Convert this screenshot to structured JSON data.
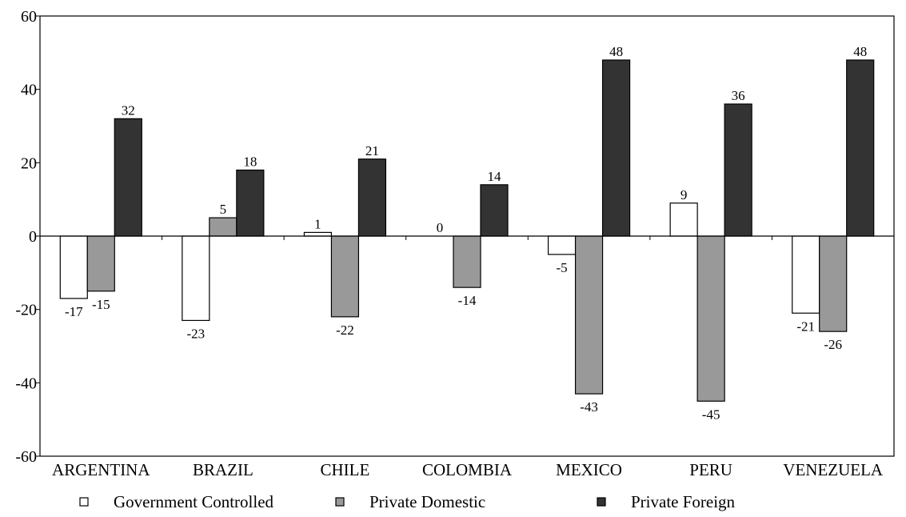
{
  "chart_data": {
    "type": "bar",
    "categories": [
      "ARGENTINA",
      "BRAZIL",
      "CHILE",
      "COLOMBIA",
      "MEXICO",
      "PERU",
      "VENEZUELA"
    ],
    "series": [
      {
        "name": "Government Controlled",
        "color": "#ffffff",
        "values": [
          -17,
          -23,
          1,
          0,
          -5,
          9,
          -21
        ],
        "labels": [
          "-17",
          "-23",
          "1",
          "0",
          "-5",
          "9",
          "-21"
        ]
      },
      {
        "name": "Private Domestic",
        "color": "#999999",
        "values": [
          -15,
          5,
          -22,
          -14,
          -43,
          -45,
          -26
        ],
        "labels": [
          "-15",
          "5",
          "-22",
          "-14",
          "-43",
          "-45",
          "-26"
        ]
      },
      {
        "name": "Private Foreign",
        "color": "#333333",
        "values": [
          32,
          18,
          21,
          14,
          48,
          36,
          48
        ],
        "labels": [
          "32",
          "18",
          "21",
          "14",
          "48",
          "36",
          "48"
        ]
      }
    ],
    "ylim": [
      -60,
      60
    ],
    "yticks": [
      "-60",
      "-40",
      "-20",
      "0",
      "20",
      "40",
      "60"
    ],
    "grid": false,
    "legend_position": "bottom"
  }
}
